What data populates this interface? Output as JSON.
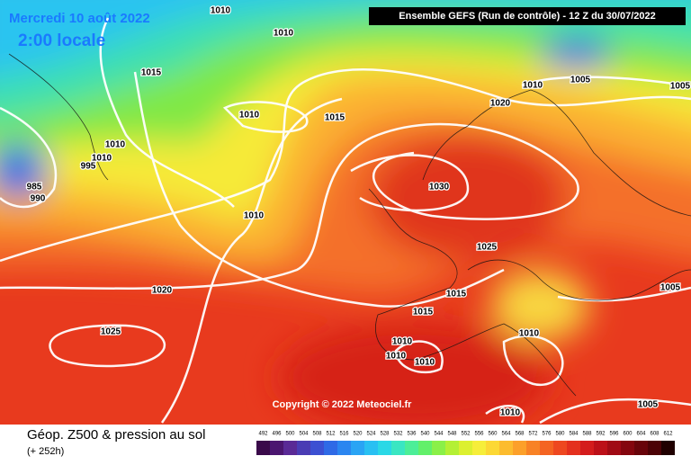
{
  "header": {
    "date": "Mercredi 10 août 2022",
    "time": "2:00 locale",
    "run": "Ensemble GEFS  (Run de contrôle)  -  12 Z du 30/07/2022"
  },
  "isobars": [
    "1010",
    "1010",
    "1015",
    "1010",
    "1015",
    "1010",
    "1010",
    "995",
    "985",
    "990",
    "1010",
    "1030",
    "1020",
    "1010",
    "1005",
    "1005",
    "1025",
    "1020",
    "1015",
    "1015",
    "1005",
    "1010",
    "1025",
    "1010",
    "1010",
    "1010",
    "1010",
    "1005"
  ],
  "copyright": "Copyright © 2022 Meteociel.fr",
  "legend": {
    "title": "Géop. Z500 & pression au sol",
    "subtitle": "(+ 252h)",
    "scale": [
      492,
      496,
      500,
      504,
      508,
      512,
      516,
      520,
      524,
      528,
      532,
      536,
      540,
      544,
      548,
      552,
      556,
      560,
      564,
      568,
      572,
      576,
      580,
      584,
      588,
      592,
      596,
      600,
      604,
      608,
      612
    ],
    "colors": [
      "#3a0a4a",
      "#4b1670",
      "#5a2a96",
      "#4a3cb4",
      "#3c50d2",
      "#2f6ae6",
      "#2b86f0",
      "#2aa4f4",
      "#29c0f2",
      "#2ad8e6",
      "#3ae6c2",
      "#4cee98",
      "#62f06a",
      "#8af048",
      "#b4f034",
      "#dcf030",
      "#f6ee3a",
      "#fcd834",
      "#fcbc2e",
      "#fca02a",
      "#f88226",
      "#f46422",
      "#ee4820",
      "#e4301e",
      "#d41c1c",
      "#bc1018",
      "#a00a14",
      "#84060e",
      "#68040a",
      "#4c0206",
      "#200000"
    ]
  }
}
